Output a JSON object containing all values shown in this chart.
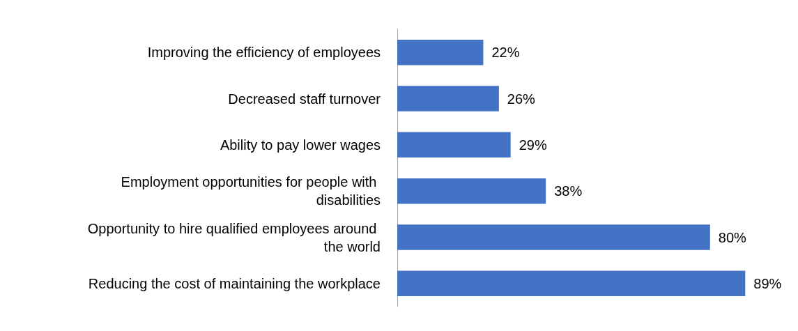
{
  "chart_data": {
    "type": "bar",
    "orientation": "horizontal",
    "categories": [
      "Improving the efficiency of employees",
      "Decreased staff turnover",
      "Ability to pay lower wages",
      "Employment opportunities for people with disabilities",
      "Opportunity to hire qualified employees around the world",
      "Reducing the cost of maintaining the workplace"
    ],
    "values": [
      22,
      26,
      29,
      38,
      80,
      89
    ],
    "value_labels": [
      "22%",
      "26%",
      "29%",
      "38%",
      "80%",
      "89%"
    ],
    "color": "#4472c4"
  }
}
